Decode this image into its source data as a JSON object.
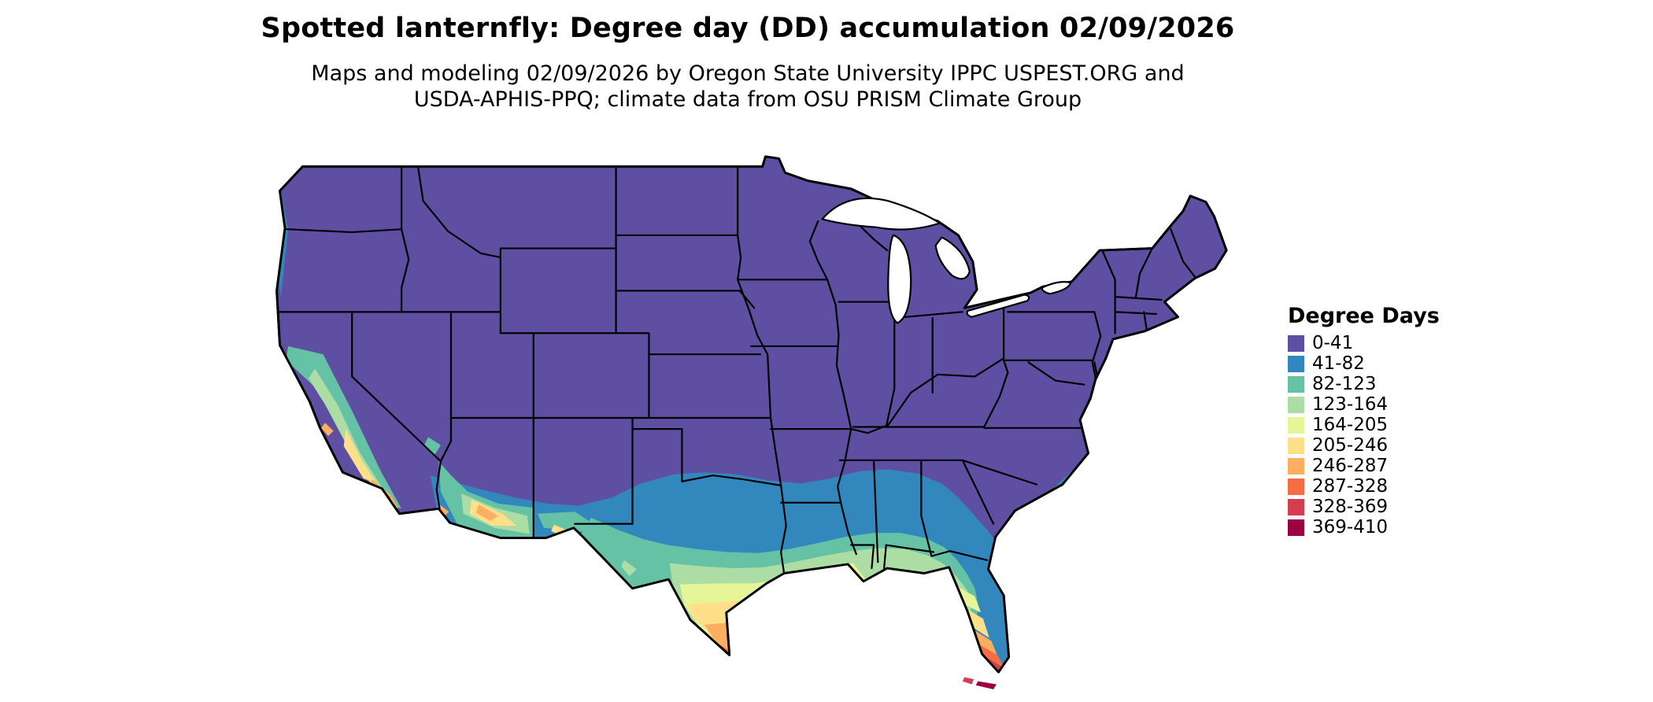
{
  "title": "Spotted lanternfly: Degree day (DD) accumulation 02/09/2026",
  "subtitle_line1": "Maps and modeling 02/09/2026 by Oregon State University IPPC USPEST.ORG and",
  "subtitle_line2": "USDA-APHIS-PPQ; climate data from OSU PRISM Climate Group",
  "legend": {
    "title": "Degree Days",
    "bins": [
      {
        "label": "0-41",
        "color": "#5e4fa2"
      },
      {
        "label": "41-82",
        "color": "#3288bd"
      },
      {
        "label": "82-123",
        "color": "#66c2a5"
      },
      {
        "label": "123-164",
        "color": "#abdda4"
      },
      {
        "label": "164-205",
        "color": "#e6f598"
      },
      {
        "label": "205-246",
        "color": "#fee08b"
      },
      {
        "label": "246-287",
        "color": "#fdae61"
      },
      {
        "label": "287-328",
        "color": "#f46d43"
      },
      {
        "label": "328-369",
        "color": "#d53e4f"
      },
      {
        "label": "369-410",
        "color": "#9e0142"
      }
    ]
  },
  "map_data": {
    "type": "choropleth-map",
    "region": "Contiguous United States",
    "pest": "Spotted lanternfly",
    "variable": "Degree day (DD) accumulation",
    "date": "02/09/2026",
    "units": "degree days",
    "value_range": [
      0,
      410
    ],
    "bin_width": 41,
    "observations": [
      {
        "area": "Most of the northern and central US, Rockies, Appalachians, Northeast",
        "value_bin": "0-41"
      },
      {
        "area": "Southern Plains, north-central Texas, central Gulf states, coastal Carolinas, PNW coast",
        "value_bin": "41-82"
      },
      {
        "area": "Central Texas, southern Louisiana/Mississippi/Alabama, southern Arizona, California coast and Central Valley",
        "value_bin": "82-164"
      },
      {
        "area": "Texas Gulf coast, Florida panhandle coast, north Florida peninsula",
        "value_bin": "123-205"
      },
      {
        "area": "South Texas, central Florida, Phoenix-Tucson lowlands, southern California valleys",
        "value_bin": "205-287"
      },
      {
        "area": "Lower Rio Grande valley, southern Florida, southern California coast spots",
        "value_bin": "287-369"
      },
      {
        "area": "Extreme south Florida tip and Florida Keys",
        "value_bin": "369-410"
      }
    ]
  }
}
